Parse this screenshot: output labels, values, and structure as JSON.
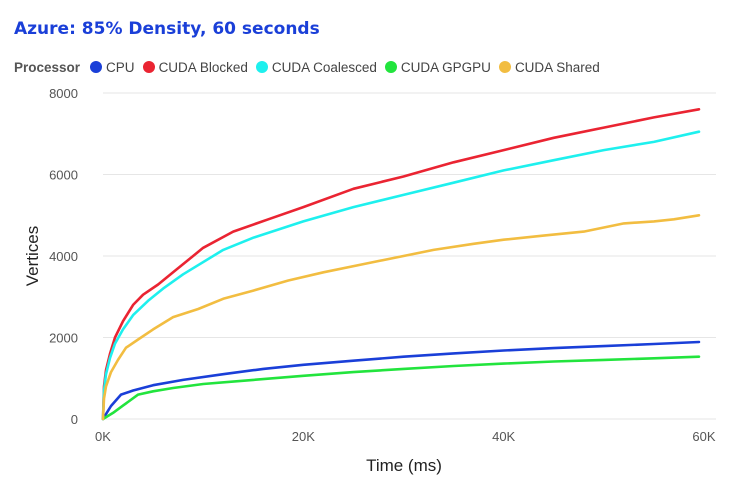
{
  "chart_data": {
    "type": "line",
    "title": "Azure: 85% Density, 60 seconds",
    "xlabel": "Time (ms)",
    "ylabel": "Vertices",
    "legend_title": "Processor",
    "legend_position": "top-left",
    "xlim": [
      0,
      60000
    ],
    "ylim": [
      0,
      8000
    ],
    "x_ticks": [
      0,
      20000,
      40000,
      60000
    ],
    "x_tick_labels": [
      "0K",
      "20K",
      "40K",
      "60K"
    ],
    "y_ticks": [
      0,
      2000,
      4000,
      6000,
      8000
    ],
    "y_tick_labels": [
      "0",
      "2000",
      "4000",
      "6000",
      "8000"
    ],
    "grid": "horizontal",
    "series": [
      {
        "name": "CPU",
        "color": "#1a3fd8",
        "points": [
          [
            0,
            0
          ],
          [
            300,
            120
          ],
          [
            800,
            320
          ],
          [
            1800,
            600
          ],
          [
            3000,
            700
          ],
          [
            5000,
            830
          ],
          [
            8000,
            960
          ],
          [
            12000,
            1100
          ],
          [
            16000,
            1230
          ],
          [
            20000,
            1330
          ],
          [
            25000,
            1430
          ],
          [
            30000,
            1530
          ],
          [
            35000,
            1610
          ],
          [
            40000,
            1680
          ],
          [
            45000,
            1740
          ],
          [
            50000,
            1790
          ],
          [
            55000,
            1840
          ],
          [
            59500,
            1890
          ]
        ]
      },
      {
        "name": "CUDA Blocked",
        "color": "#ea2432",
        "points": [
          [
            0,
            0
          ],
          [
            100,
            800
          ],
          [
            300,
            1200
          ],
          [
            700,
            1600
          ],
          [
            1200,
            2000
          ],
          [
            2000,
            2400
          ],
          [
            3000,
            2800
          ],
          [
            4000,
            3050
          ],
          [
            5500,
            3300
          ],
          [
            7000,
            3600
          ],
          [
            10000,
            4200
          ],
          [
            13000,
            4600
          ],
          [
            16500,
            4900
          ],
          [
            20000,
            5200
          ],
          [
            25000,
            5650
          ],
          [
            30000,
            5950
          ],
          [
            35000,
            6300
          ],
          [
            40000,
            6600
          ],
          [
            45000,
            6900
          ],
          [
            50000,
            7150
          ],
          [
            55000,
            7400
          ],
          [
            59500,
            7600
          ]
        ]
      },
      {
        "name": "CUDA Coalesced",
        "color": "#1ef0ee",
        "points": [
          [
            0,
            0
          ],
          [
            100,
            700
          ],
          [
            300,
            1100
          ],
          [
            700,
            1500
          ],
          [
            1200,
            1850
          ],
          [
            2000,
            2200
          ],
          [
            3000,
            2550
          ],
          [
            4500,
            2900
          ],
          [
            6000,
            3200
          ],
          [
            8000,
            3550
          ],
          [
            12000,
            4150
          ],
          [
            15000,
            4450
          ],
          [
            20000,
            4850
          ],
          [
            25000,
            5200
          ],
          [
            30000,
            5500
          ],
          [
            35000,
            5800
          ],
          [
            40000,
            6100
          ],
          [
            45000,
            6350
          ],
          [
            50000,
            6600
          ],
          [
            55000,
            6800
          ],
          [
            59500,
            7050
          ]
        ]
      },
      {
        "name": "CUDA GPGPU",
        "color": "#22e43d",
        "points": [
          [
            0,
            0
          ],
          [
            1000,
            150
          ],
          [
            2000,
            330
          ],
          [
            3500,
            600
          ],
          [
            5000,
            680
          ],
          [
            7000,
            760
          ],
          [
            10000,
            860
          ],
          [
            15000,
            960
          ],
          [
            20000,
            1060
          ],
          [
            25000,
            1150
          ],
          [
            30000,
            1230
          ],
          [
            35000,
            1300
          ],
          [
            40000,
            1360
          ],
          [
            45000,
            1410
          ],
          [
            50000,
            1450
          ],
          [
            55000,
            1490
          ],
          [
            59500,
            1530
          ]
        ]
      },
      {
        "name": "CUDA Shared",
        "color": "#f2bd41",
        "points": [
          [
            0,
            0
          ],
          [
            100,
            500
          ],
          [
            300,
            800
          ],
          [
            800,
            1150
          ],
          [
            1500,
            1450
          ],
          [
            2300,
            1750
          ],
          [
            3500,
            1950
          ],
          [
            5000,
            2200
          ],
          [
            7000,
            2500
          ],
          [
            9500,
            2700
          ],
          [
            12000,
            2950
          ],
          [
            15000,
            3150
          ],
          [
            18500,
            3400
          ],
          [
            22000,
            3600
          ],
          [
            26000,
            3800
          ],
          [
            30000,
            4000
          ],
          [
            33000,
            4150
          ],
          [
            37000,
            4300
          ],
          [
            40000,
            4400
          ],
          [
            44000,
            4500
          ],
          [
            48000,
            4600
          ],
          [
            52000,
            4800
          ],
          [
            55000,
            4850
          ],
          [
            57000,
            4900
          ],
          [
            59500,
            5000
          ]
        ]
      }
    ]
  }
}
